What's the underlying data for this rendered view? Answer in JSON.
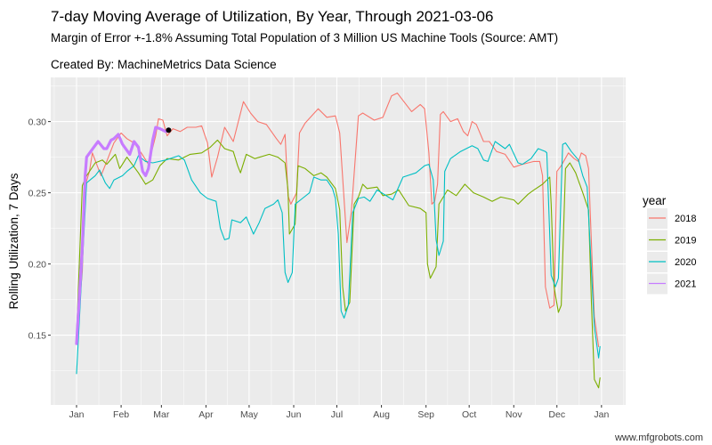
{
  "chart_data": {
    "type": "line",
    "title": "7-day Moving Average of Utilization, By Year, Through 2021-03-06",
    "subtitle": "Margin of Error +-1.8% Assuming Total Population of 3 Million US Machine Tools (Source: AMT)",
    "caption": "Created By: MachineMetrics Data Science",
    "xlabel": "",
    "ylabel": "Rolling Utilization, 7 Days",
    "ylim": [
      0.101,
      0.331
    ],
    "yticks": [
      "0.15",
      "0.20",
      "0.25",
      "0.30"
    ],
    "ytick_values": [
      0.15,
      0.2,
      0.25,
      0.3
    ],
    "xticks": [
      "Jan",
      "Feb",
      "Mar",
      "Apr",
      "May",
      "Jun",
      "Jul",
      "Aug",
      "Sep",
      "Oct",
      "Nov",
      "Dec",
      "Jan"
    ],
    "grid": true,
    "legend": {
      "title": "year",
      "position": "right"
    },
    "series": [
      {
        "name": "2018",
        "color": "#F8766D",
        "points": [
          [
            "01-01",
            0.148
          ],
          [
            "01-03",
            0.17
          ],
          [
            "01-05",
            0.195
          ],
          [
            "01-07",
            0.255
          ],
          [
            "01-10",
            0.265
          ],
          [
            "01-12",
            0.278
          ],
          [
            "01-15",
            0.27
          ],
          [
            "01-18",
            0.262
          ],
          [
            "01-22",
            0.272
          ],
          [
            "01-27",
            0.285
          ],
          [
            "02-01",
            0.292
          ],
          [
            "02-05",
            0.288
          ],
          [
            "02-10",
            0.285
          ],
          [
            "02-15",
            0.278
          ],
          [
            "02-20",
            0.27
          ],
          [
            "02-25",
            0.29
          ],
          [
            "02-27",
            0.302
          ],
          [
            "03-02",
            0.301
          ],
          [
            "03-05",
            0.29
          ],
          [
            "03-09",
            0.295
          ],
          [
            "03-14",
            0.293
          ],
          [
            "03-19",
            0.296
          ],
          [
            "03-25",
            0.296
          ],
          [
            "03-29",
            0.297
          ],
          [
            "04-02",
            0.285
          ],
          [
            "04-05",
            0.261
          ],
          [
            "04-09",
            0.275
          ],
          [
            "04-14",
            0.296
          ],
          [
            "04-20",
            0.286
          ],
          [
            "04-27",
            0.314
          ],
          [
            "05-02",
            0.306
          ],
          [
            "05-07",
            0.3
          ],
          [
            "05-13",
            0.298
          ],
          [
            "05-20",
            0.288
          ],
          [
            "05-23",
            0.284
          ],
          [
            "05-26",
            0.291
          ],
          [
            "05-28",
            0.248
          ],
          [
            "05-30",
            0.242
          ],
          [
            "06-03",
            0.25
          ],
          [
            "06-05",
            0.292
          ],
          [
            "06-09",
            0.299
          ],
          [
            "06-18",
            0.309
          ],
          [
            "06-24",
            0.303
          ],
          [
            "06-30",
            0.304
          ],
          [
            "07-03",
            0.292
          ],
          [
            "07-08",
            0.215
          ],
          [
            "07-11",
            0.236
          ],
          [
            "07-16",
            0.304
          ],
          [
            "07-19",
            0.306
          ],
          [
            "07-27",
            0.301
          ],
          [
            "08-02",
            0.303
          ],
          [
            "08-08",
            0.318
          ],
          [
            "08-12",
            0.32
          ],
          [
            "08-22",
            0.307
          ],
          [
            "08-28",
            0.312
          ],
          [
            "08-31",
            0.309
          ],
          [
            "09-03",
            0.278
          ],
          [
            "09-05",
            0.242
          ],
          [
            "09-07",
            0.244
          ],
          [
            "09-09",
            0.256
          ],
          [
            "09-11",
            0.305
          ],
          [
            "09-13",
            0.307
          ],
          [
            "09-18",
            0.3
          ],
          [
            "09-23",
            0.302
          ],
          [
            "09-27",
            0.293
          ],
          [
            "09-30",
            0.29
          ],
          [
            "10-03",
            0.3
          ],
          [
            "10-06",
            0.298
          ],
          [
            "10-11",
            0.286
          ],
          [
            "10-15",
            0.286
          ],
          [
            "10-20",
            0.279
          ],
          [
            "10-26",
            0.277
          ],
          [
            "11-01",
            0.268
          ],
          [
            "11-07",
            0.27
          ],
          [
            "11-15",
            0.272
          ],
          [
            "11-19",
            0.272
          ],
          [
            "11-21",
            0.262
          ],
          [
            "11-23",
            0.184
          ],
          [
            "11-26",
            0.169
          ],
          [
            "11-29",
            0.171
          ],
          [
            "12-01",
            0.265
          ],
          [
            "12-04",
            0.269
          ],
          [
            "12-09",
            0.278
          ],
          [
            "12-13",
            0.274
          ],
          [
            "12-16",
            0.272
          ],
          [
            "12-18",
            0.278
          ],
          [
            "12-21",
            0.276
          ],
          [
            "12-23",
            0.267
          ],
          [
            "12-25",
            0.215
          ],
          [
            "12-27",
            0.163
          ],
          [
            "12-30",
            0.142
          ]
        ]
      },
      {
        "name": "2019",
        "color": "#7CAE00",
        "points": [
          [
            "01-01",
            0.15
          ],
          [
            "01-05",
            0.255
          ],
          [
            "01-08",
            0.262
          ],
          [
            "01-14",
            0.271
          ],
          [
            "01-19",
            0.273
          ],
          [
            "01-22",
            0.27
          ],
          [
            "01-28",
            0.277
          ],
          [
            "01-31",
            0.267
          ],
          [
            "02-05",
            0.275
          ],
          [
            "02-13",
            0.264
          ],
          [
            "02-18",
            0.256
          ],
          [
            "02-23",
            0.259
          ],
          [
            "02-28",
            0.269
          ],
          [
            "03-05",
            0.274
          ],
          [
            "03-13",
            0.273
          ],
          [
            "03-21",
            0.277
          ],
          [
            "03-29",
            0.278
          ],
          [
            "04-04",
            0.282
          ],
          [
            "04-09",
            0.287
          ],
          [
            "04-14",
            0.281
          ],
          [
            "04-20",
            0.279
          ],
          [
            "04-23",
            0.269
          ],
          [
            "04-25",
            0.264
          ],
          [
            "04-29",
            0.277
          ],
          [
            "05-05",
            0.274
          ],
          [
            "05-15",
            0.277
          ],
          [
            "05-21",
            0.275
          ],
          [
            "05-26",
            0.271
          ],
          [
            "05-28",
            0.252
          ],
          [
            "05-29",
            0.221
          ],
          [
            "06-02",
            0.228
          ],
          [
            "06-04",
            0.269
          ],
          [
            "06-09",
            0.267
          ],
          [
            "06-15",
            0.262
          ],
          [
            "06-20",
            0.264
          ],
          [
            "06-24",
            0.261
          ],
          [
            "06-30",
            0.253
          ],
          [
            "07-03",
            0.238
          ],
          [
            "07-05",
            0.184
          ],
          [
            "07-07",
            0.167
          ],
          [
            "07-10",
            0.173
          ],
          [
            "07-13",
            0.242
          ],
          [
            "07-16",
            0.247
          ],
          [
            "07-19",
            0.256
          ],
          [
            "07-22",
            0.253
          ],
          [
            "07-29",
            0.254
          ],
          [
            "08-02",
            0.248
          ],
          [
            "08-08",
            0.249
          ],
          [
            "08-13",
            0.252
          ],
          [
            "08-20",
            0.241
          ],
          [
            "08-28",
            0.239
          ],
          [
            "09-01",
            0.236
          ],
          [
            "09-02",
            0.2
          ],
          [
            "09-04",
            0.19
          ],
          [
            "09-08",
            0.198
          ],
          [
            "09-10",
            0.242
          ],
          [
            "09-16",
            0.252
          ],
          [
            "09-22",
            0.248
          ],
          [
            "09-28",
            0.256
          ],
          [
            "10-04",
            0.25
          ],
          [
            "10-11",
            0.247
          ],
          [
            "10-17",
            0.244
          ],
          [
            "10-23",
            0.247
          ],
          [
            "11-01",
            0.245
          ],
          [
            "11-04",
            0.242
          ],
          [
            "11-11",
            0.249
          ],
          [
            "11-15",
            0.252
          ],
          [
            "11-21",
            0.256
          ],
          [
            "11-26",
            0.261
          ],
          [
            "11-27",
            0.242
          ],
          [
            "11-29",
            0.184
          ],
          [
            "12-02",
            0.166
          ],
          [
            "12-04",
            0.171
          ],
          [
            "12-07",
            0.267
          ],
          [
            "12-10",
            0.271
          ],
          [
            "12-14",
            0.264
          ],
          [
            "12-19",
            0.25
          ],
          [
            "12-23",
            0.238
          ],
          [
            "12-25",
            0.173
          ],
          [
            "12-27",
            0.119
          ],
          [
            "12-30",
            0.113
          ],
          [
            "12-31",
            0.12
          ]
        ]
      },
      {
        "name": "2020",
        "color": "#00BFC4",
        "points": [
          [
            "01-01",
            0.123
          ],
          [
            "01-08",
            0.257
          ],
          [
            "01-14",
            0.262
          ],
          [
            "01-17",
            0.266
          ],
          [
            "01-21",
            0.257
          ],
          [
            "01-24",
            0.253
          ],
          [
            "01-27",
            0.259
          ],
          [
            "02-02",
            0.262
          ],
          [
            "02-05",
            0.265
          ],
          [
            "02-10",
            0.269
          ],
          [
            "02-13",
            0.276
          ],
          [
            "02-18",
            0.272
          ],
          [
            "02-23",
            0.271
          ],
          [
            "03-04",
            0.273
          ],
          [
            "03-13",
            0.276
          ],
          [
            "03-17",
            0.273
          ],
          [
            "03-22",
            0.259
          ],
          [
            "03-28",
            0.25
          ],
          [
            "04-02",
            0.246
          ],
          [
            "04-08",
            0.244
          ],
          [
            "04-11",
            0.225
          ],
          [
            "04-14",
            0.217
          ],
          [
            "04-17",
            0.218
          ],
          [
            "04-19",
            0.231
          ],
          [
            "04-25",
            0.229
          ],
          [
            "04-29",
            0.233
          ],
          [
            "05-04",
            0.221
          ],
          [
            "05-08",
            0.229
          ],
          [
            "05-12",
            0.239
          ],
          [
            "05-18",
            0.242
          ],
          [
            "05-21",
            0.245
          ],
          [
            "05-24",
            0.236
          ],
          [
            "05-26",
            0.194
          ],
          [
            "05-28",
            0.187
          ],
          [
            "05-31",
            0.194
          ],
          [
            "06-02",
            0.242
          ],
          [
            "06-07",
            0.246
          ],
          [
            "06-12",
            0.25
          ],
          [
            "06-15",
            0.261
          ],
          [
            "06-20",
            0.259
          ],
          [
            "06-24",
            0.259
          ],
          [
            "06-28",
            0.253
          ],
          [
            "06-30",
            0.246
          ],
          [
            "07-02",
            0.221
          ],
          [
            "07-04",
            0.167
          ],
          [
            "07-06",
            0.162
          ],
          [
            "07-09",
            0.171
          ],
          [
            "07-12",
            0.236
          ],
          [
            "07-16",
            0.246
          ],
          [
            "07-20",
            0.247
          ],
          [
            "07-24",
            0.244
          ],
          [
            "07-29",
            0.252
          ],
          [
            "08-09",
            0.245
          ],
          [
            "08-16",
            0.261
          ],
          [
            "08-25",
            0.264
          ],
          [
            "08-31",
            0.269
          ],
          [
            "09-03",
            0.27
          ],
          [
            "09-06",
            0.259
          ],
          [
            "09-08",
            0.217
          ],
          [
            "09-10",
            0.206
          ],
          [
            "09-13",
            0.216
          ],
          [
            "09-14",
            0.265
          ],
          [
            "09-18",
            0.274
          ],
          [
            "09-25",
            0.279
          ],
          [
            "10-03",
            0.283
          ],
          [
            "10-07",
            0.281
          ],
          [
            "10-11",
            0.273
          ],
          [
            "10-14",
            0.272
          ],
          [
            "10-19",
            0.286
          ],
          [
            "10-26",
            0.281
          ],
          [
            "10-29",
            0.284
          ],
          [
            "11-04",
            0.271
          ],
          [
            "11-07",
            0.27
          ],
          [
            "11-13",
            0.274
          ],
          [
            "11-18",
            0.281
          ],
          [
            "11-23",
            0.279
          ],
          [
            "11-24",
            0.278
          ],
          [
            "11-27",
            0.192
          ],
          [
            "11-30",
            0.184
          ],
          [
            "12-02",
            0.19
          ],
          [
            "12-05",
            0.284
          ],
          [
            "12-07",
            0.285
          ],
          [
            "12-11",
            0.279
          ],
          [
            "12-16",
            0.273
          ],
          [
            "12-19",
            0.262
          ],
          [
            "12-22",
            0.254
          ],
          [
            "12-27",
            0.156
          ],
          [
            "12-30",
            0.134
          ],
          [
            "12-31",
            0.142
          ]
        ]
      },
      {
        "name": "2021",
        "color": "#C77CFF",
        "points": [
          [
            "01-01",
            0.144
          ],
          [
            "01-05",
            0.212
          ],
          [
            "01-07",
            0.262
          ],
          [
            "01-08",
            0.275
          ],
          [
            "01-13",
            0.282
          ],
          [
            "01-16",
            0.286
          ],
          [
            "01-20",
            0.281
          ],
          [
            "01-22",
            0.281
          ],
          [
            "01-25",
            0.287
          ],
          [
            "01-27",
            0.288
          ],
          [
            "01-30",
            0.291
          ],
          [
            "02-02",
            0.284
          ],
          [
            "02-07",
            0.277
          ],
          [
            "02-10",
            0.286
          ],
          [
            "02-13",
            0.282
          ],
          [
            "02-16",
            0.265
          ],
          [
            "02-18",
            0.262
          ],
          [
            "02-20",
            0.267
          ],
          [
            "02-23",
            0.287
          ],
          [
            "02-25",
            0.296
          ],
          [
            "02-28",
            0.295
          ],
          [
            "03-04",
            0.293
          ],
          [
            "03-06",
            0.294
          ]
        ]
      }
    ],
    "highlight_point": {
      "date": "2021-03-06",
      "value": 0.294,
      "color": "#000000"
    }
  },
  "watermark": "www.mfgrobots.com"
}
